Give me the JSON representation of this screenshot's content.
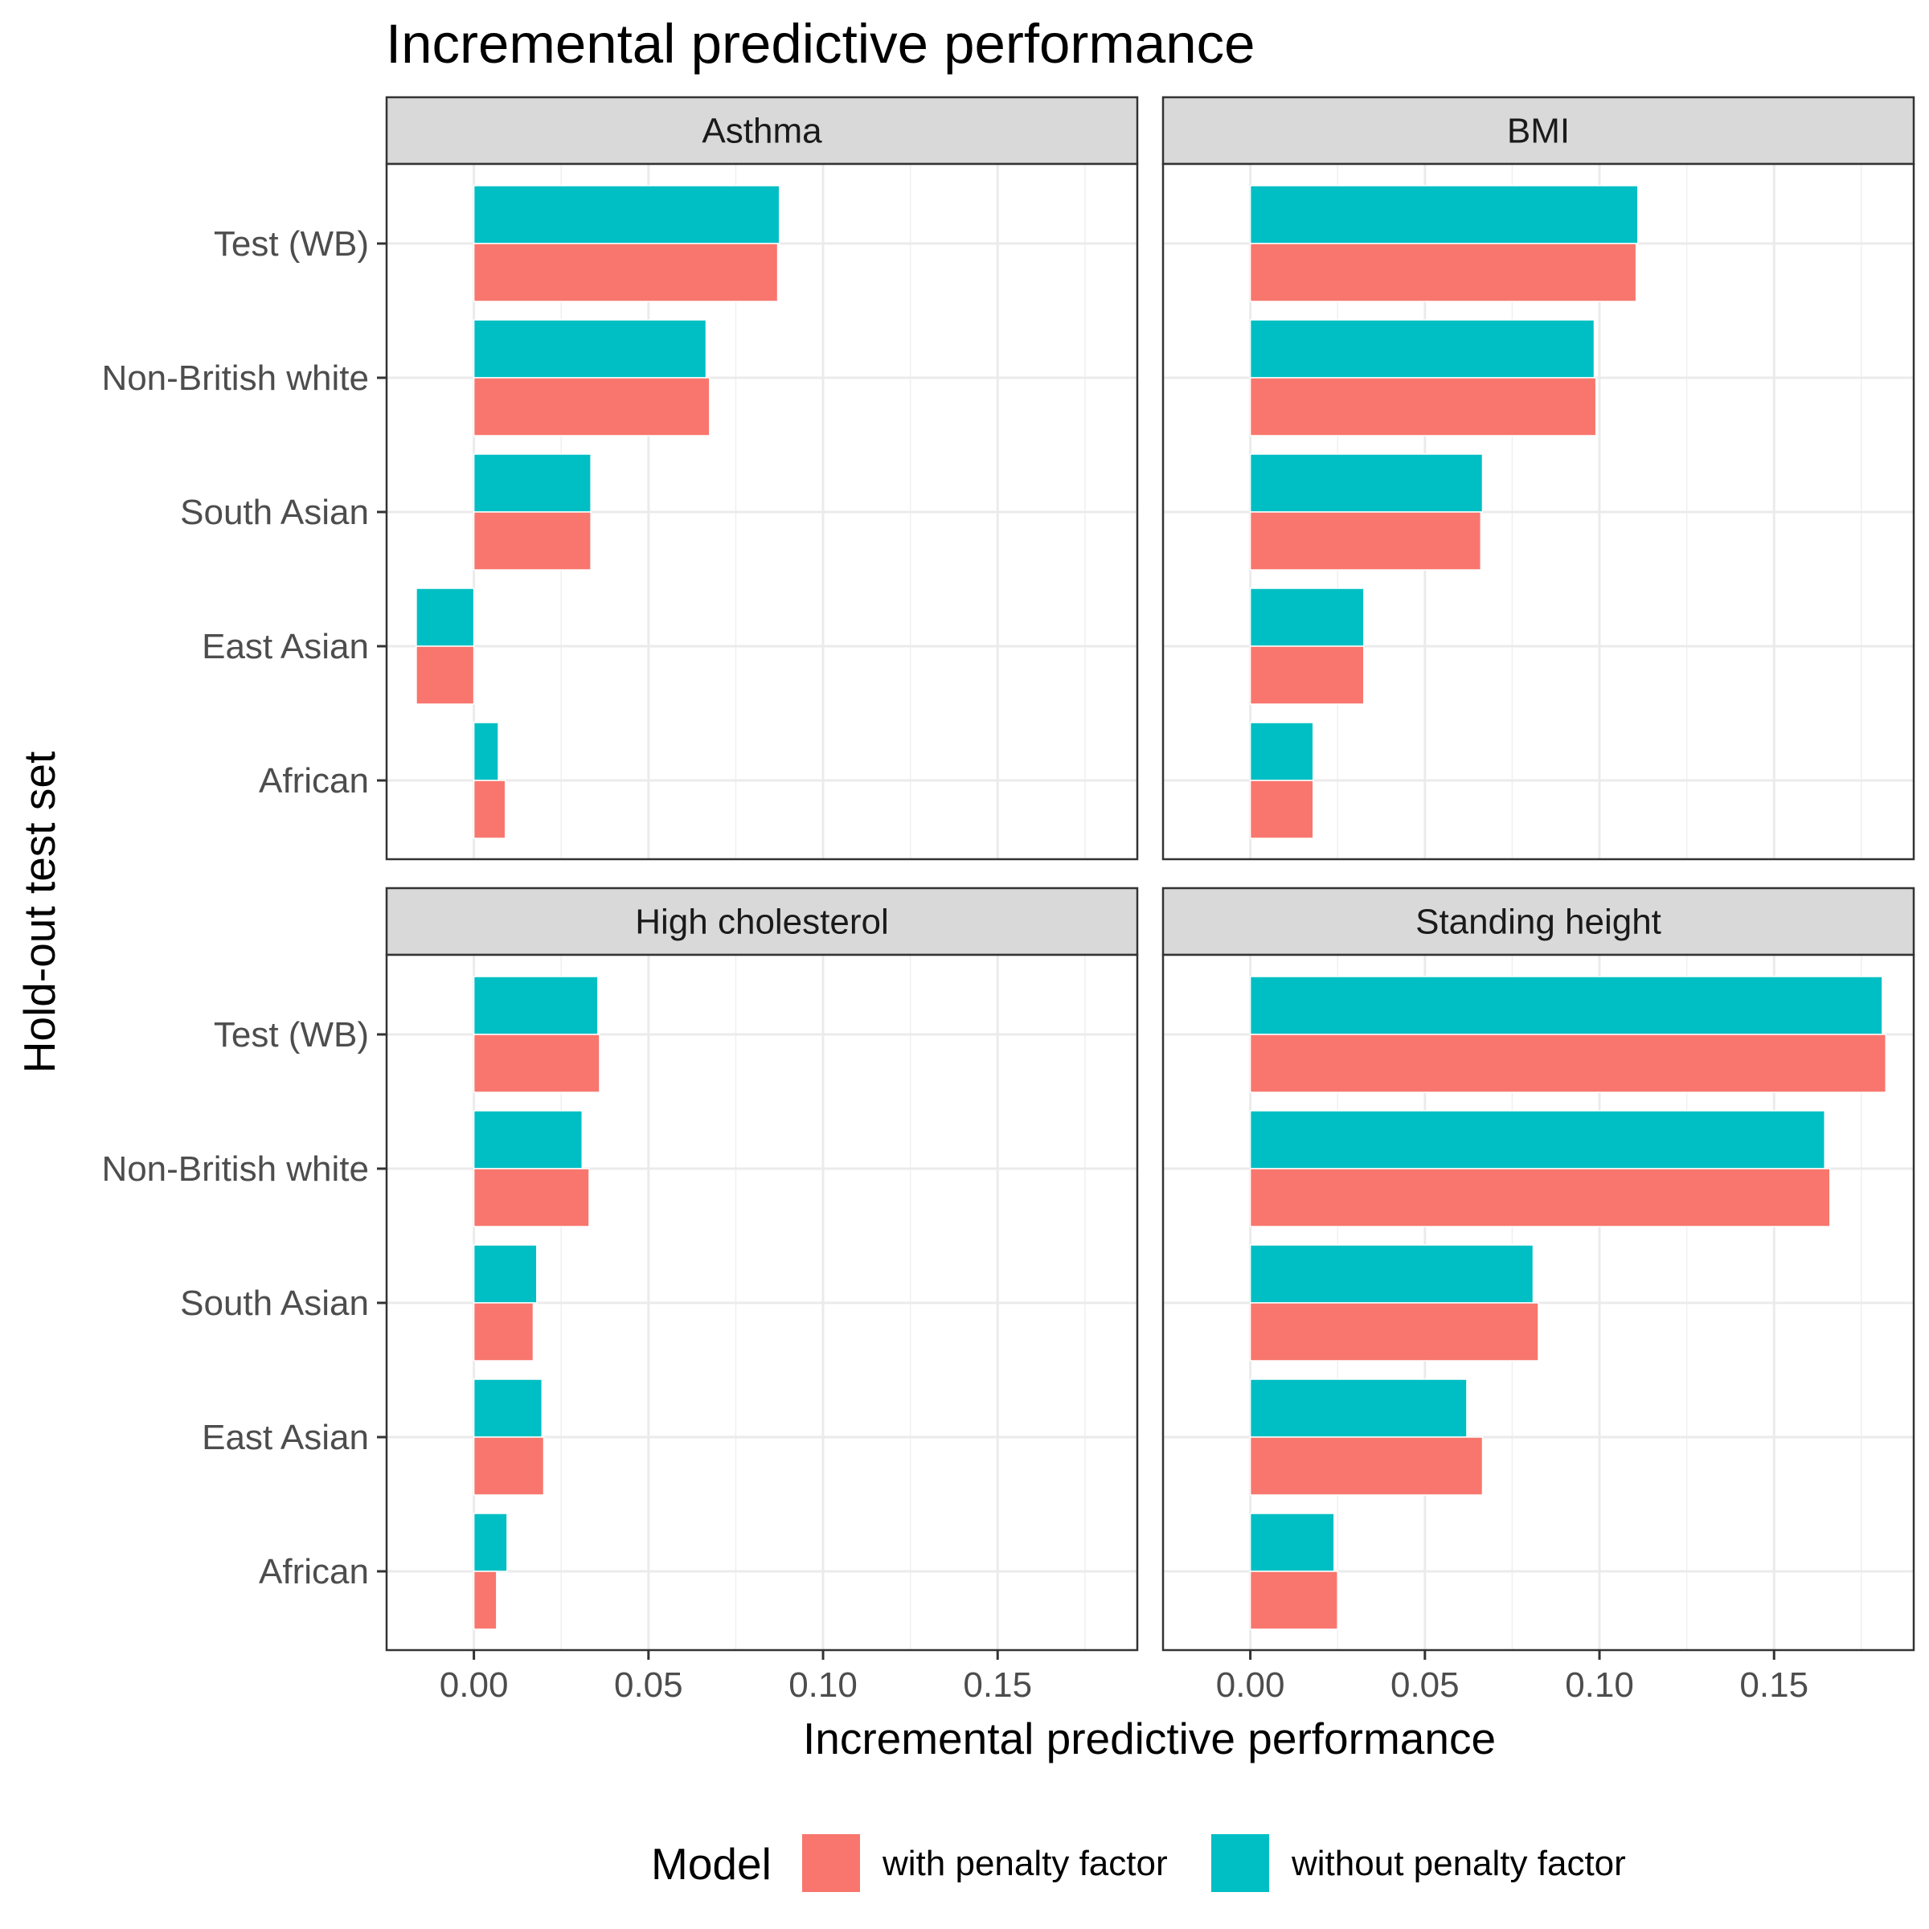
{
  "chart_data": {
    "type": "bar",
    "orientation": "horizontal",
    "title": "Incremental predictive performance",
    "xlabel": "Incremental predictive performance",
    "ylabel": "Hold-out test set",
    "xlim": [
      -0.025,
      0.19
    ],
    "x_ticks": [
      0.0,
      0.05,
      0.1,
      0.15
    ],
    "x_tick_labels": [
      "0.00",
      "0.05",
      "0.10",
      "0.15"
    ],
    "categories": [
      "Test (WB)",
      "Non-British white",
      "South Asian",
      "East Asian",
      "African"
    ],
    "grid": true,
    "legend": {
      "title": "Model",
      "position": "bottom",
      "entries": [
        {
          "name": "with penalty factor",
          "color": "#F8766D"
        },
        {
          "name": "without penalty factor",
          "color": "#00BFC4"
        }
      ]
    },
    "facets": [
      {
        "name": "Asthma",
        "series": [
          {
            "name": "with penalty factor",
            "values": [
              0.087,
              0.0675,
              0.0335,
              -0.0165,
              0.009
            ]
          },
          {
            "name": "without penalty factor",
            "values": [
              0.0875,
              0.0665,
              0.0335,
              -0.0165,
              0.007
            ]
          }
        ]
      },
      {
        "name": "BMI",
        "series": [
          {
            "name": "with penalty factor",
            "values": [
              0.1105,
              0.099,
              0.066,
              0.0325,
              0.018
            ]
          },
          {
            "name": "without penalty factor",
            "values": [
              0.111,
              0.0985,
              0.0665,
              0.0325,
              0.018
            ]
          }
        ]
      },
      {
        "name": "High cholesterol",
        "series": [
          {
            "name": "with penalty factor",
            "values": [
              0.036,
              0.033,
              0.017,
              0.02,
              0.0065
            ]
          },
          {
            "name": "without penalty factor",
            "values": [
              0.0355,
              0.031,
              0.018,
              0.0195,
              0.0095
            ]
          }
        ]
      },
      {
        "name": "Standing height",
        "series": [
          {
            "name": "with penalty factor",
            "values": [
              0.182,
              0.166,
              0.0825,
              0.0665,
              0.025
            ]
          },
          {
            "name": "without penalty factor",
            "values": [
              0.181,
              0.1645,
              0.081,
              0.062,
              0.024
            ]
          }
        ]
      }
    ]
  }
}
